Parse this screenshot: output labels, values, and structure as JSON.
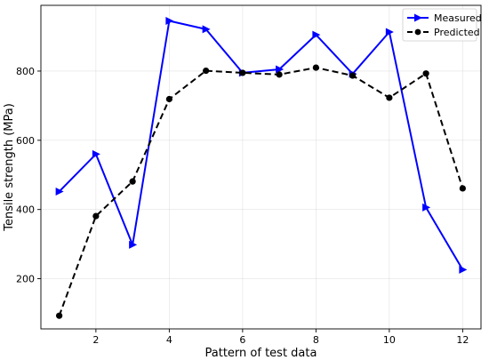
{
  "chart_data": {
    "type": "line",
    "xlabel": "Pattern of test data",
    "ylabel": "Tensile strength (MPa)",
    "xlim": [
      0.5,
      12.5
    ],
    "ylim": [
      55,
      990
    ],
    "xticks": [
      2,
      4,
      6,
      8,
      10,
      12
    ],
    "yticks": [
      200,
      400,
      600,
      800
    ],
    "grid": true,
    "legend_position": "top-right",
    "x": [
      1,
      2,
      3,
      4,
      5,
      6,
      7,
      8,
      9,
      10,
      11,
      12
    ],
    "series": [
      {
        "name": "Measured",
        "color": "#0000ff",
        "line_style": "solid",
        "marker": "triangle-right",
        "values": [
          452,
          560,
          298,
          945,
          921,
          795,
          805,
          905,
          792,
          913,
          406,
          226
        ]
      },
      {
        "name": "Predicted",
        "color": "#000000",
        "line_style": "dashed",
        "marker": "circle",
        "values": [
          93,
          381,
          481,
          719,
          801,
          795,
          790,
          810,
          787,
          723,
          793,
          461
        ]
      }
    ]
  }
}
